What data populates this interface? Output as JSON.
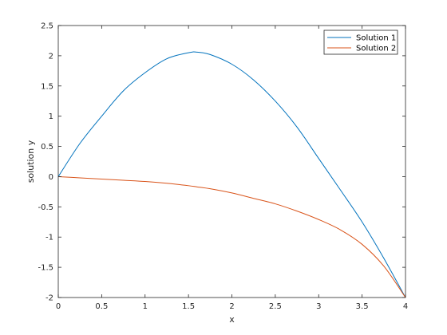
{
  "chart_data": {
    "type": "line",
    "xlabel": "x",
    "ylabel": "solution y",
    "xlim": [
      0,
      4
    ],
    "ylim": [
      -2,
      2.5
    ],
    "x_ticks": [
      "0",
      "0.5",
      "1",
      "1.5",
      "2",
      "2.5",
      "3",
      "3.5",
      "4"
    ],
    "y_ticks": [
      "-2",
      "-1.5",
      "-1",
      "-0.5",
      "0",
      "0.5",
      "1",
      "1.5",
      "2",
      "2.5"
    ],
    "grid": false,
    "legend_position": "top-right",
    "x": [
      0,
      0.25,
      0.5,
      0.75,
      1.0,
      1.25,
      1.5,
      1.6,
      1.75,
      2.0,
      2.25,
      2.5,
      2.75,
      3.0,
      3.25,
      3.5,
      3.75,
      4.0
    ],
    "series": [
      {
        "name": "Solution 1",
        "color": "#0072BD",
        "values": [
          0,
          0.55,
          1.0,
          1.42,
          1.72,
          1.95,
          2.05,
          2.06,
          2.02,
          1.86,
          1.6,
          1.25,
          0.82,
          0.3,
          -0.22,
          -0.75,
          -1.35,
          -2.0
        ]
      },
      {
        "name": "Solution 2",
        "color": "#D95319",
        "values": [
          0,
          -0.02,
          -0.04,
          -0.06,
          -0.08,
          -0.11,
          -0.15,
          -0.17,
          -0.2,
          -0.27,
          -0.36,
          -0.45,
          -0.57,
          -0.71,
          -0.88,
          -1.12,
          -1.48,
          -2.0
        ]
      }
    ]
  }
}
